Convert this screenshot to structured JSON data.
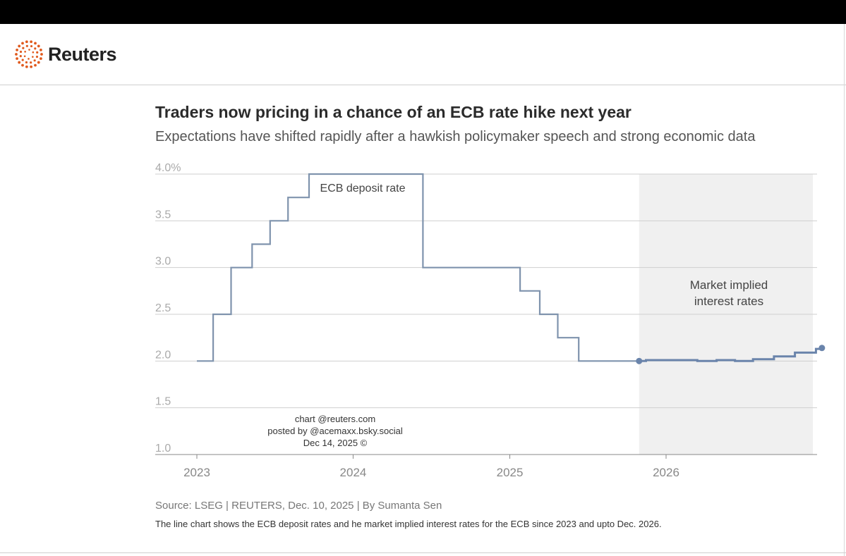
{
  "brand": {
    "name": "Reuters",
    "logo_icon": "reuters-dots-icon",
    "logo_color": "#e05a1e"
  },
  "header": {
    "title": "Traders now pricing in a chance of an ECB rate hike next year",
    "subtitle": "Expectations have shifted rapidly after a hawkish policymaker speech and strong economic data"
  },
  "chart_data": {
    "type": "line",
    "title": "Traders now pricing in a chance of an ECB rate hike next year",
    "subtitle": "Expectations have shifted rapidly after a hawkish policymaker speech and strong economic data",
    "xlabel": "",
    "ylabel": "",
    "ylim": [
      1.0,
      4.0
    ],
    "xlim": [
      "2023-01-01",
      "2026-12-31"
    ],
    "y_ticks": [
      {
        "value": 4.0,
        "label": "4.0%"
      },
      {
        "value": 3.5,
        "label": "3.5"
      },
      {
        "value": 3.0,
        "label": "3.0"
      },
      {
        "value": 2.5,
        "label": "2.5"
      },
      {
        "value": 2.0,
        "label": "2.0"
      },
      {
        "value": 1.5,
        "label": "1.5"
      },
      {
        "value": 1.0,
        "label": "1.0"
      }
    ],
    "x_ticks": [
      {
        "value": "2023-01-01",
        "label": "2023"
      },
      {
        "value": "2024-01-01",
        "label": "2024"
      },
      {
        "value": "2025-01-01",
        "label": "2025"
      },
      {
        "value": "2026-01-01",
        "label": "2026"
      }
    ],
    "grid": true,
    "series": [
      {
        "name": "ECB deposit rate",
        "style": "step",
        "color": "#7f93ad",
        "points": [
          {
            "x": "2023-01-01",
            "y": 2.0
          },
          {
            "x": "2023-02-08",
            "y": 2.5
          },
          {
            "x": "2023-03-22",
            "y": 3.0
          },
          {
            "x": "2023-05-10",
            "y": 3.25
          },
          {
            "x": "2023-06-21",
            "y": 3.5
          },
          {
            "x": "2023-08-02",
            "y": 3.75
          },
          {
            "x": "2023-09-20",
            "y": 4.0
          },
          {
            "x": "2024-06-12",
            "y": 3.0
          },
          {
            "x": "2025-01-25",
            "y": 2.75
          },
          {
            "x": "2025-03-12",
            "y": 2.5
          },
          {
            "x": "2025-04-23",
            "y": 2.25
          },
          {
            "x": "2025-06-11",
            "y": 2.0
          },
          {
            "x": "2025-10-30",
            "y": 2.0
          }
        ]
      },
      {
        "name": "Market implied interest rates",
        "style": "step",
        "color": "#6a84ab",
        "points": [
          {
            "x": "2025-10-30",
            "y": 2.0
          },
          {
            "x": "2025-11-15",
            "y": 2.01
          },
          {
            "x": "2026-03-15",
            "y": 2.0
          },
          {
            "x": "2026-04-29",
            "y": 2.01
          },
          {
            "x": "2026-06-11",
            "y": 2.0
          },
          {
            "x": "2026-07-23",
            "y": 2.02
          },
          {
            "x": "2026-09-10",
            "y": 2.05
          },
          {
            "x": "2026-10-29",
            "y": 2.09
          },
          {
            "x": "2026-12-17",
            "y": 2.13
          },
          {
            "x": "2026-12-31",
            "y": 2.14
          }
        ]
      }
    ],
    "shaded_region": {
      "from": "2025-10-30",
      "to": "2026-12-31",
      "label_lines": [
        "Market implied",
        "interest rates"
      ],
      "color": "#f0f0f0"
    },
    "series_label": "ECB deposit rate",
    "watermark_lines": [
      "chart @reuters.com",
      "posted by @acemaxx.bsky.social",
      "Dec 14, 2025 ©"
    ]
  },
  "footer": {
    "source": "Source: LSEG | REUTERS, Dec. 10, 2025 | By Sumanta Sen",
    "description": "The line chart shows the ECB deposit rates and he market implied interest rates for the ECB since 2023 and upto Dec. 2026."
  }
}
